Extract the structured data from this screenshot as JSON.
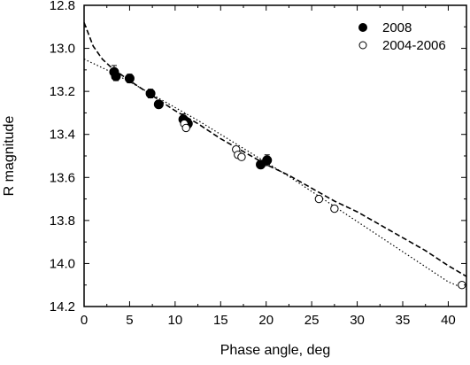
{
  "chart_data": {
    "type": "scatter",
    "title": "",
    "xlabel": "Phase angle, deg",
    "ylabel": "R magnitude",
    "xlim": [
      0,
      42
    ],
    "ylim": [
      12.8,
      14.2
    ],
    "y_inverted": true,
    "grid": false,
    "legend_position": "top-right",
    "x_ticks": [
      0,
      5,
      10,
      15,
      20,
      25,
      30,
      35,
      40
    ],
    "x_tick_labels": [
      "0",
      "5",
      "10",
      "15",
      "20",
      "25",
      "30",
      "35",
      "40"
    ],
    "y_ticks": [
      12.8,
      13.0,
      13.2,
      13.4,
      13.6,
      13.8,
      14.0,
      14.2
    ],
    "y_tick_labels": [
      "12.8",
      "13.0",
      "13.2",
      "13.4",
      "13.6",
      "13.8",
      "14.0",
      "14.2"
    ],
    "series": [
      {
        "name": "2008",
        "marker": "filled-circle",
        "points": [
          {
            "x": 3.3,
            "y": 13.11,
            "err": 0.03
          },
          {
            "x": 3.5,
            "y": 13.13,
            "err": 0.02
          },
          {
            "x": 5.0,
            "y": 13.14,
            "err": 0.02
          },
          {
            "x": 7.3,
            "y": 13.21,
            "err": 0.02
          },
          {
            "x": 8.2,
            "y": 13.26,
            "err": 0.015
          },
          {
            "x": 10.9,
            "y": 13.33,
            "err": 0.025
          },
          {
            "x": 11.4,
            "y": 13.35,
            "err": 0.02
          },
          {
            "x": 19.4,
            "y": 13.54,
            "err": 0.015
          },
          {
            "x": 20.1,
            "y": 13.52,
            "err": 0.025
          }
        ]
      },
      {
        "name": "2004-2006",
        "marker": "open-circle",
        "points": [
          {
            "x": 11.0,
            "y": 13.35
          },
          {
            "x": 11.2,
            "y": 13.37
          },
          {
            "x": 16.7,
            "y": 13.47
          },
          {
            "x": 16.9,
            "y": 13.495
          },
          {
            "x": 17.3,
            "y": 13.505
          },
          {
            "x": 25.8,
            "y": 13.7
          },
          {
            "x": 27.5,
            "y": 13.745
          },
          {
            "x": 41.5,
            "y": 14.1
          }
        ]
      }
    ],
    "fit_curves": [
      {
        "style": "dashed",
        "points": [
          {
            "x": 0,
            "y": 12.88
          },
          {
            "x": 1,
            "y": 12.99
          },
          {
            "x": 2,
            "y": 13.05
          },
          {
            "x": 3,
            "y": 13.09
          },
          {
            "x": 4,
            "y": 13.12
          },
          {
            "x": 5,
            "y": 13.15
          },
          {
            "x": 7.5,
            "y": 13.22
          },
          {
            "x": 10,
            "y": 13.29
          },
          {
            "x": 12.5,
            "y": 13.35
          },
          {
            "x": 15,
            "y": 13.42
          },
          {
            "x": 17.5,
            "y": 13.48
          },
          {
            "x": 20,
            "y": 13.54
          },
          {
            "x": 22.5,
            "y": 13.59
          },
          {
            "x": 25,
            "y": 13.65
          },
          {
            "x": 27.5,
            "y": 13.71
          },
          {
            "x": 30,
            "y": 13.76
          },
          {
            "x": 32.5,
            "y": 13.82
          },
          {
            "x": 35,
            "y": 13.88
          },
          {
            "x": 37.5,
            "y": 13.94
          },
          {
            "x": 40,
            "y": 14.01
          },
          {
            "x": 42,
            "y": 14.06
          }
        ]
      },
      {
        "style": "dotted",
        "points": [
          {
            "x": 0,
            "y": 13.05
          },
          {
            "x": 2.5,
            "y": 13.1
          },
          {
            "x": 5,
            "y": 13.155
          },
          {
            "x": 7.5,
            "y": 13.215
          },
          {
            "x": 10,
            "y": 13.275
          },
          {
            "x": 12.5,
            "y": 13.335
          },
          {
            "x": 15,
            "y": 13.4
          },
          {
            "x": 17.5,
            "y": 13.465
          },
          {
            "x": 20,
            "y": 13.53
          },
          {
            "x": 22.5,
            "y": 13.595
          },
          {
            "x": 25,
            "y": 13.665
          },
          {
            "x": 27.5,
            "y": 13.735
          },
          {
            "x": 30,
            "y": 13.805
          },
          {
            "x": 32.5,
            "y": 13.875
          },
          {
            "x": 35,
            "y": 13.945
          },
          {
            "x": 37.5,
            "y": 14.015
          },
          {
            "x": 40,
            "y": 14.085
          },
          {
            "x": 42,
            "y": 14.12
          }
        ]
      }
    ]
  }
}
